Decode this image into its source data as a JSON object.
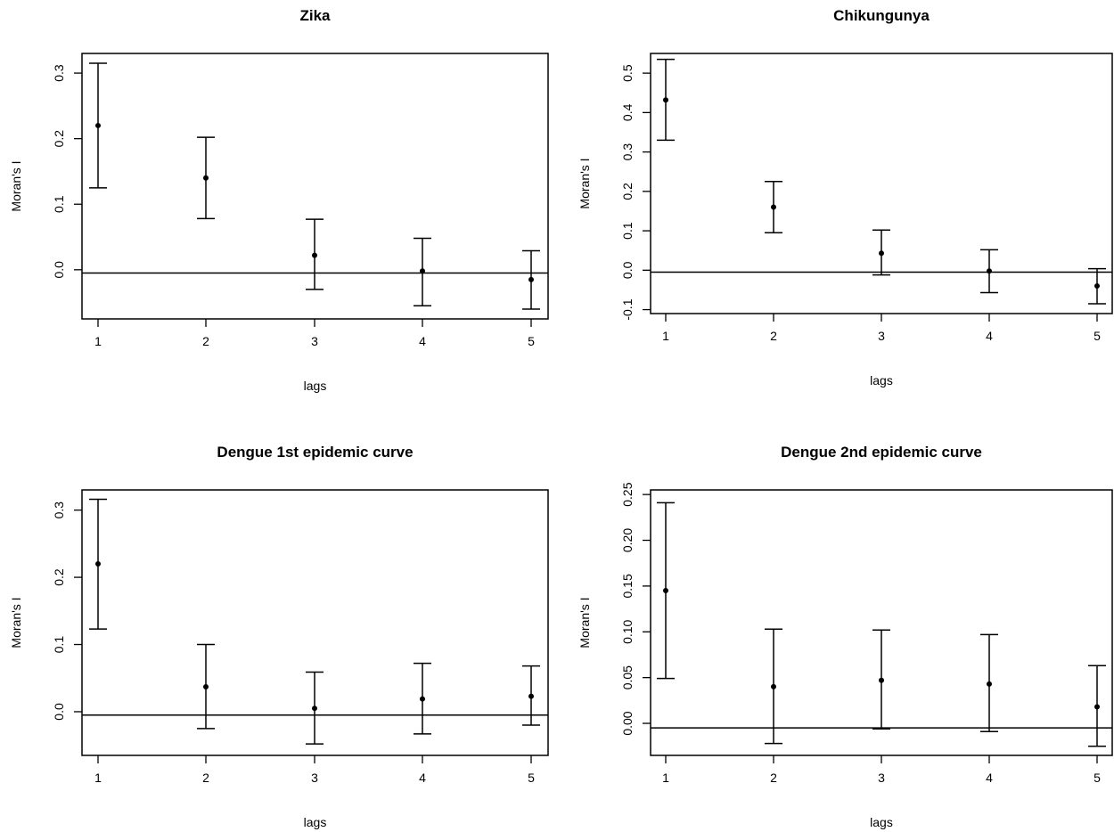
{
  "chart_data": [
    {
      "type": "scatter",
      "title": "Zika",
      "xlabel": "lags",
      "ylabel": "Moran's I",
      "xlim": [
        1,
        5
      ],
      "ylim": [
        -0.075,
        0.33
      ],
      "x_ticks": [
        1,
        2,
        3,
        4,
        5
      ],
      "y_ticks": [
        "0.0",
        "0.1",
        "0.2",
        "0.3"
      ],
      "reference_line": -0.005,
      "points": [
        {
          "x": 1,
          "y": 0.22,
          "lower": 0.125,
          "upper": 0.315
        },
        {
          "x": 2,
          "y": 0.14,
          "lower": 0.078,
          "upper": 0.202
        },
        {
          "x": 3,
          "y": 0.022,
          "lower": -0.03,
          "upper": 0.077
        },
        {
          "x": 4,
          "y": -0.002,
          "lower": -0.055,
          "upper": 0.048
        },
        {
          "x": 5,
          "y": -0.015,
          "lower": -0.06,
          "upper": 0.029
        }
      ]
    },
    {
      "type": "scatter",
      "title": "Chikungunya",
      "xlabel": "lags",
      "ylabel": "Moran's I",
      "xlim": [
        1,
        5
      ],
      "ylim": [
        -0.11,
        0.55
      ],
      "x_ticks": [
        1,
        2,
        3,
        4,
        5
      ],
      "y_ticks": [
        "-0.1",
        "0.0",
        "0.1",
        "0.2",
        "0.3",
        "0.4",
        "0.5"
      ],
      "reference_line": -0.005,
      "points": [
        {
          "x": 1,
          "y": 0.432,
          "lower": 0.33,
          "upper": 0.535
        },
        {
          "x": 2,
          "y": 0.16,
          "lower": 0.095,
          "upper": 0.225
        },
        {
          "x": 3,
          "y": 0.043,
          "lower": -0.012,
          "upper": 0.102
        },
        {
          "x": 4,
          "y": -0.002,
          "lower": -0.057,
          "upper": 0.052
        },
        {
          "x": 5,
          "y": -0.04,
          "lower": -0.085,
          "upper": 0.004
        }
      ]
    },
    {
      "type": "scatter",
      "title": "Dengue 1st epidemic curve",
      "xlabel": "lags",
      "ylabel": "Moran's I",
      "xlim": [
        1,
        5
      ],
      "ylim": [
        -0.065,
        0.33
      ],
      "x_ticks": [
        1,
        2,
        3,
        4,
        5
      ],
      "y_ticks": [
        "0.0",
        "0.1",
        "0.2",
        "0.3"
      ],
      "reference_line": -0.005,
      "points": [
        {
          "x": 1,
          "y": 0.22,
          "lower": 0.123,
          "upper": 0.316
        },
        {
          "x": 2,
          "y": 0.037,
          "lower": -0.025,
          "upper": 0.1
        },
        {
          "x": 3,
          "y": 0.005,
          "lower": -0.048,
          "upper": 0.059
        },
        {
          "x": 4,
          "y": 0.019,
          "lower": -0.033,
          "upper": 0.072
        },
        {
          "x": 5,
          "y": 0.023,
          "lower": -0.02,
          "upper": 0.068
        }
      ]
    },
    {
      "type": "scatter",
      "title": "Dengue 2nd epidemic curve",
      "xlabel": "lags",
      "ylabel": "Moran's I",
      "xlim": [
        1,
        5
      ],
      "ylim": [
        -0.035,
        0.255
      ],
      "x_ticks": [
        1,
        2,
        3,
        4,
        5
      ],
      "y_ticks": [
        "0.00",
        "0.05",
        "0.10",
        "0.15",
        "0.20",
        "0.25"
      ],
      "reference_line": -0.005,
      "points": [
        {
          "x": 1,
          "y": 0.145,
          "lower": 0.049,
          "upper": 0.241
        },
        {
          "x": 2,
          "y": 0.04,
          "lower": -0.022,
          "upper": 0.103
        },
        {
          "x": 3,
          "y": 0.047,
          "lower": -0.006,
          "upper": 0.102
        },
        {
          "x": 4,
          "y": 0.043,
          "lower": -0.009,
          "upper": 0.097
        },
        {
          "x": 5,
          "y": 0.018,
          "lower": -0.025,
          "upper": 0.063
        }
      ]
    }
  ]
}
